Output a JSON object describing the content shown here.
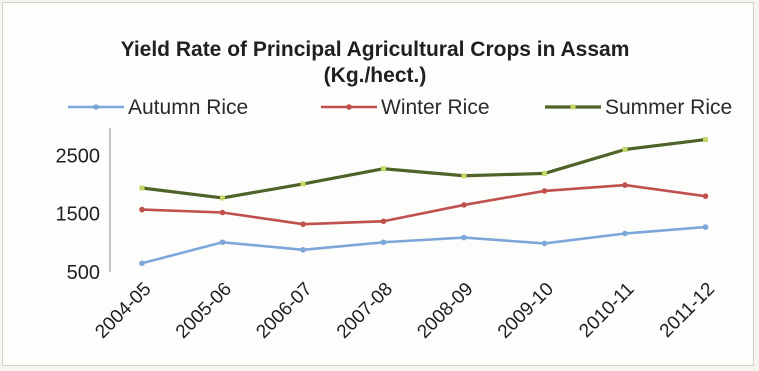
{
  "chart_data": {
    "type": "line",
    "title": "Yield Rate of Principal Agricultural Crops in Assam",
    "subtitle": "(Kg./hect.)",
    "xlabel": "",
    "ylabel": "",
    "categories": [
      "2004-05",
      "2005-06",
      "2006-07",
      "2007-08",
      "2008-09",
      "2009-10",
      "2010-11",
      "2011-12"
    ],
    "y_ticks": [
      500,
      1500,
      2500
    ],
    "ylim": [
      500,
      2900
    ],
    "grid": false,
    "legend_position": "top",
    "series": [
      {
        "name": "Autumn Rice",
        "color": "#7da7d9",
        "values": [
          650,
          1010,
          880,
          1010,
          1090,
          990,
          1160,
          1270
        ]
      },
      {
        "name": "Winter Rice",
        "color": "#c0504d",
        "values": [
          1570,
          1520,
          1320,
          1370,
          1650,
          1890,
          1990,
          1800
        ]
      },
      {
        "name": "Summer Rice",
        "color": "#4f6228",
        "values": [
          1940,
          1770,
          2010,
          2270,
          2150,
          2190,
          2600,
          2770
        ]
      }
    ]
  }
}
